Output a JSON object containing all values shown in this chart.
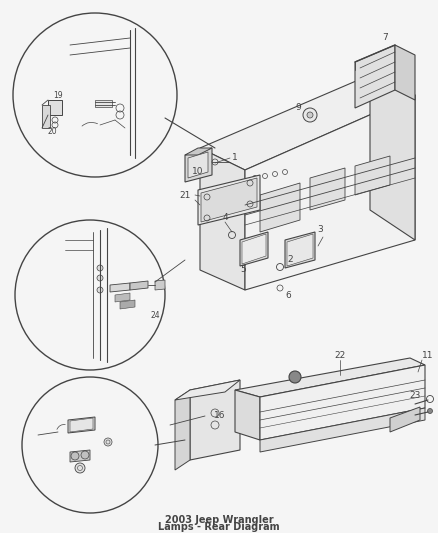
{
  "title": "2003 Jeep Wrangler\nLamps - Rear Diagram",
  "bg_color": "#f5f5f5",
  "fig_width": 4.38,
  "fig_height": 5.33,
  "dpi": 100,
  "line_color": "#444444",
  "label_fontsize": 6.5
}
